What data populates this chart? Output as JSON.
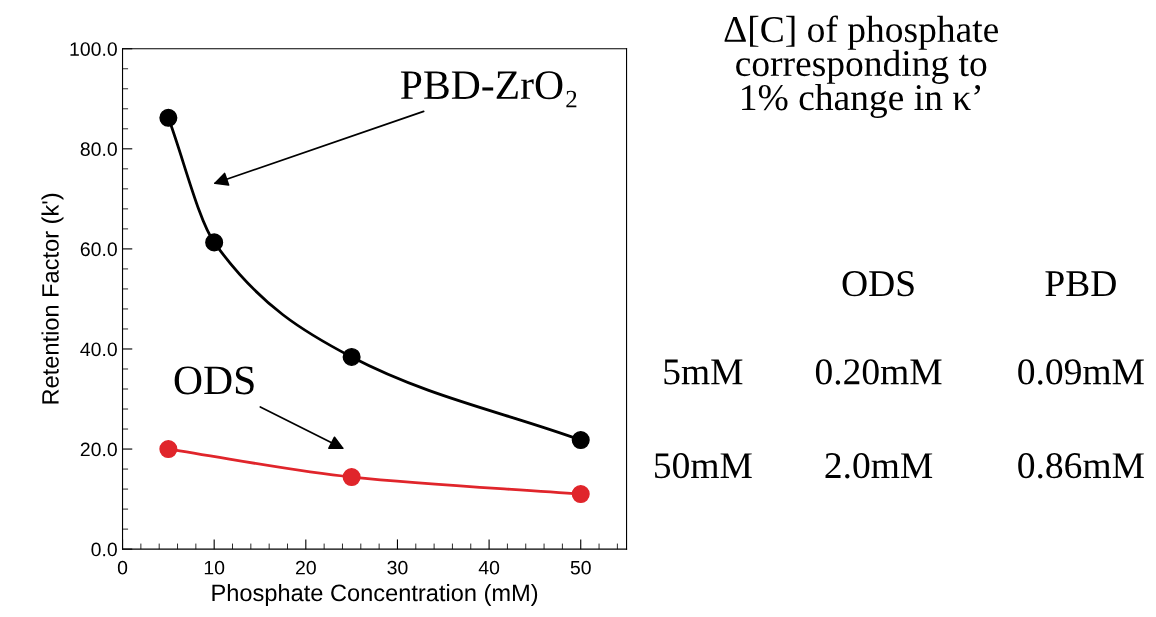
{
  "chart_data": {
    "type": "line",
    "xlabel": "Phosphate Concentration (mM)",
    "ylabel": "Retention Factor (k')",
    "series": [
      {
        "name": "PBD-ZrO₂",
        "color": "#000000",
        "x": [
          5,
          10,
          25,
          50
        ],
        "values": [
          86.2,
          61.3,
          38.4,
          21.8
        ]
      },
      {
        "name": "ODS",
        "color": "#e0252b",
        "x": [
          5,
          25,
          50
        ],
        "values": [
          20.0,
          14.4,
          11.0
        ]
      }
    ],
    "xlim": [
      0,
      55
    ],
    "xticks": [
      0,
      10,
      20,
      30,
      40,
      50
    ],
    "ylim": [
      0,
      100
    ],
    "yticks": [
      {
        "value": 0,
        "label": "0.0"
      },
      {
        "value": 20,
        "label": "20.0"
      },
      {
        "value": 40,
        "label": "40.0"
      },
      {
        "value": 60,
        "label": "60.0"
      },
      {
        "value": 80,
        "label": "80.0"
      },
      {
        "value": 100,
        "label": "100.0"
      }
    ],
    "marker": "circle",
    "line_style": "solid",
    "grid": false,
    "legend": false,
    "annotations": [
      "Δ[C] of phosphate\ncorresponding to\n1% change in κ’",
      "ODS",
      "PBD",
      "5mM",
      "0.20mM",
      "0.09mM",
      "50mM",
      "2.0mM",
      "0.86mM"
    ]
  }
}
